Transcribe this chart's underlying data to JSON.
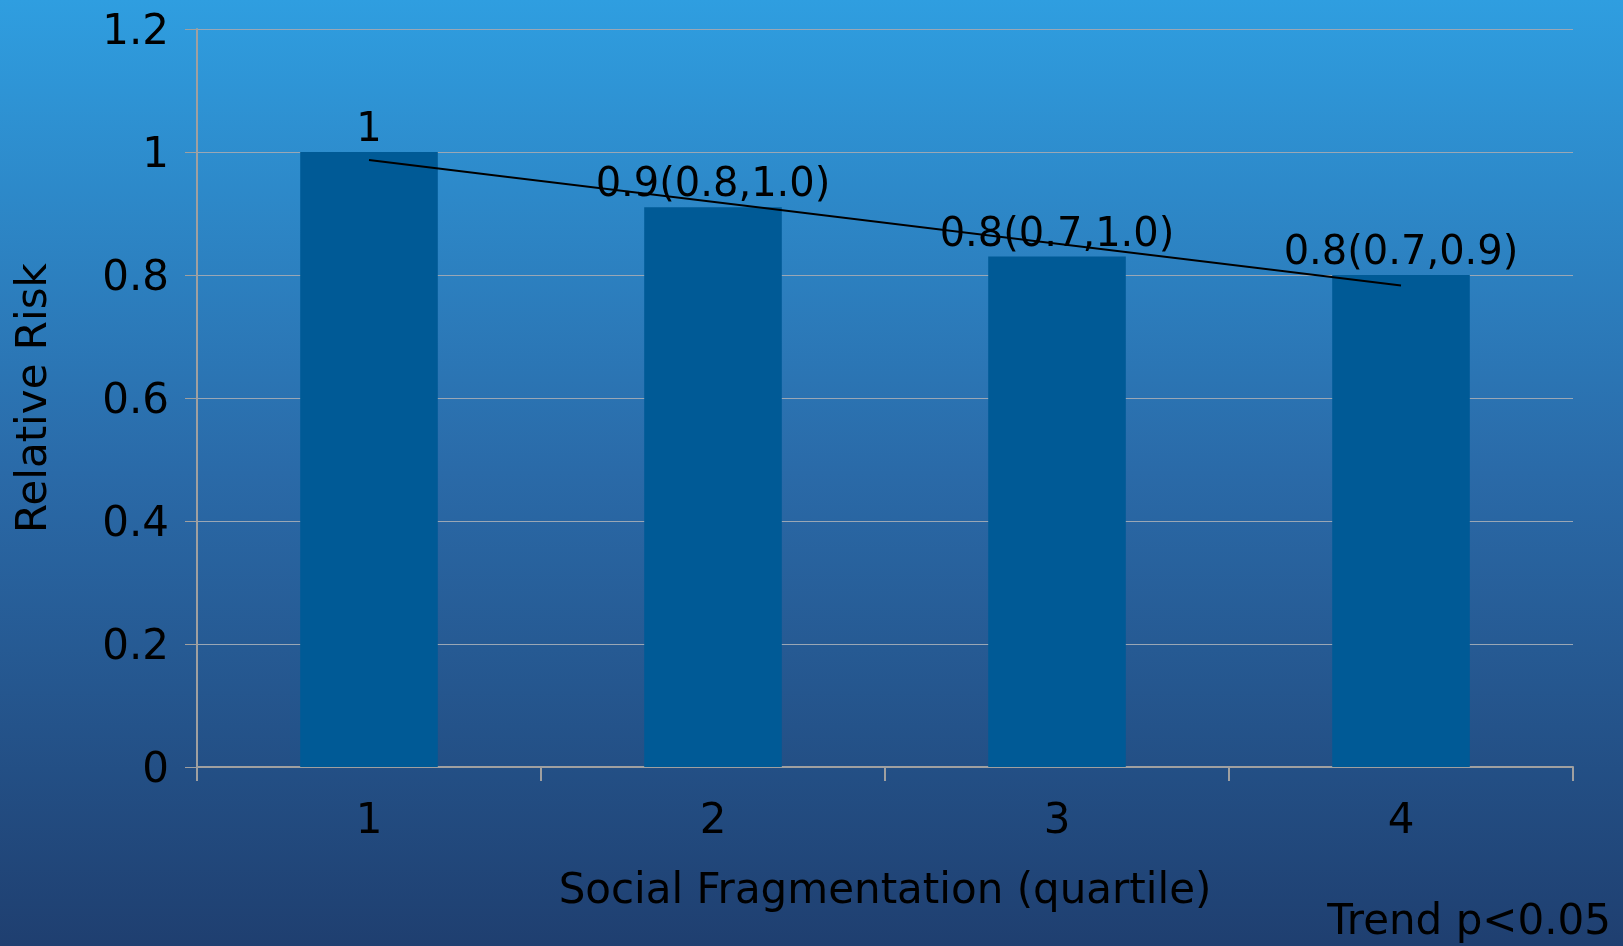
{
  "chart_data": {
    "type": "bar",
    "xlabel": "Social Fragmentation (quartile)",
    "ylabel": "Relative Risk",
    "categories": [
      "1",
      "2",
      "3",
      "4"
    ],
    "series": [
      {
        "color": "#005a96",
        "values": [
          1,
          0.91,
          0.83,
          0.8
        ],
        "value_labels": [
          "1",
          "0.9(0.8,1.0)",
          "0.8(0.7,1.0)",
          "0.8(0.7,0.9)"
        ]
      },
      {
        "type": "line",
        "color": "#000000",
        "x": [
          "1",
          "4"
        ],
        "values": [
          0.987,
          0.783
        ]
      }
    ],
    "ylim": [
      0,
      1.2
    ],
    "yticks": [
      0,
      0.2,
      0.4,
      0.6,
      0.8,
      1,
      1.2
    ],
    "grid": "y",
    "marker": "none",
    "annotations": [
      "Trend p<0.05"
    ]
  }
}
